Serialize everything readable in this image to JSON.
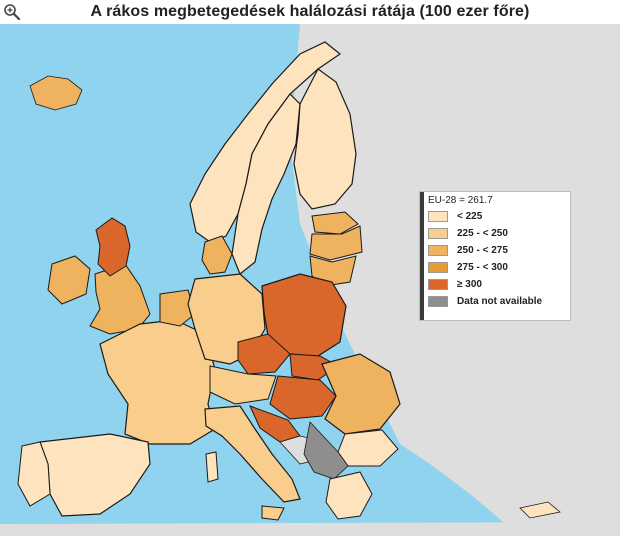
{
  "title": "A rákos megbetegedések halálozási rátája (100 ezer főre)",
  "icons": {
    "zoom": "zoom-in-icon"
  },
  "colors": {
    "sea": "#8fd3ee",
    "non_eu_land": "#dedede",
    "class_1": "#fde4bf",
    "class_2": "#f9cd8c",
    "class_3": "#efb25e",
    "class_4": "#e89a34",
    "class_5": "#d9662a",
    "not_available": "#8e8e8e",
    "border": "#1a1a1a",
    "region_line": "#c68a4a"
  },
  "legend": {
    "header": "EU-28 = 261.7",
    "items": [
      {
        "label": "< 225",
        "color_key": "class_1"
      },
      {
        "label": "225 - < 250",
        "color_key": "class_2"
      },
      {
        "label": "250 - < 275",
        "color_key": "class_3"
      },
      {
        "label": "275 - < 300",
        "color_key": "class_4"
      },
      {
        "label": "≥ 300",
        "color_key": "class_5"
      },
      {
        "label": "Data not available",
        "color_key": "not_available"
      }
    ]
  }
}
